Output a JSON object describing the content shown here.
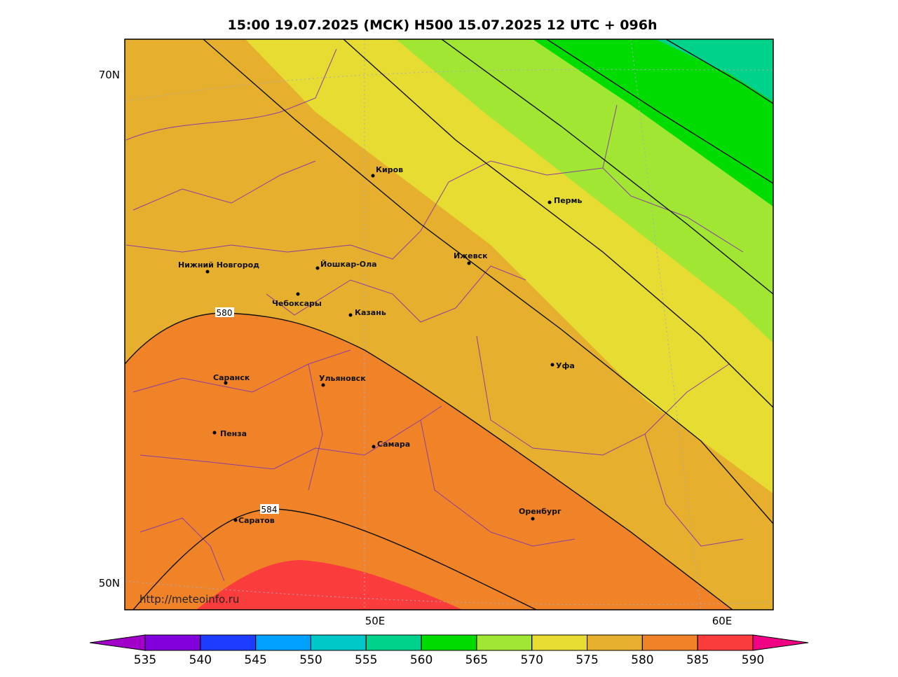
{
  "header": {
    "title": "15:00 19.07.2025 (МСК) H500  15.07.2025 12 UTC + 096h"
  },
  "map": {
    "lat_labels": [
      "70N",
      "50N"
    ],
    "lon_labels": [
      "50E",
      "60E"
    ],
    "contour_labels": [
      "580",
      "584"
    ],
    "cities": [
      "Киров",
      "Пермь",
      "Ижевск",
      "Нижний Новгород",
      "Йошкар-Ола",
      "Чебоксары",
      "Казань",
      "Уфа",
      "Саранск",
      "Ульяновск",
      "Пенза",
      "Самара",
      "Оренбург",
      "Саратов"
    ],
    "credit": "http://meteoinfo.ru"
  },
  "colorbar": {
    "ticks": [
      535,
      540,
      545,
      550,
      555,
      560,
      565,
      570,
      575,
      580,
      585,
      590
    ],
    "colors": [
      "#a000c8",
      "#8200dc",
      "#1e3cff",
      "#00a0ff",
      "#00c8c8",
      "#00d28c",
      "#00dc00",
      "#a0e632",
      "#e6dc32",
      "#e6af2d",
      "#f08228",
      "#fa3c3c",
      "#f00082"
    ]
  }
}
